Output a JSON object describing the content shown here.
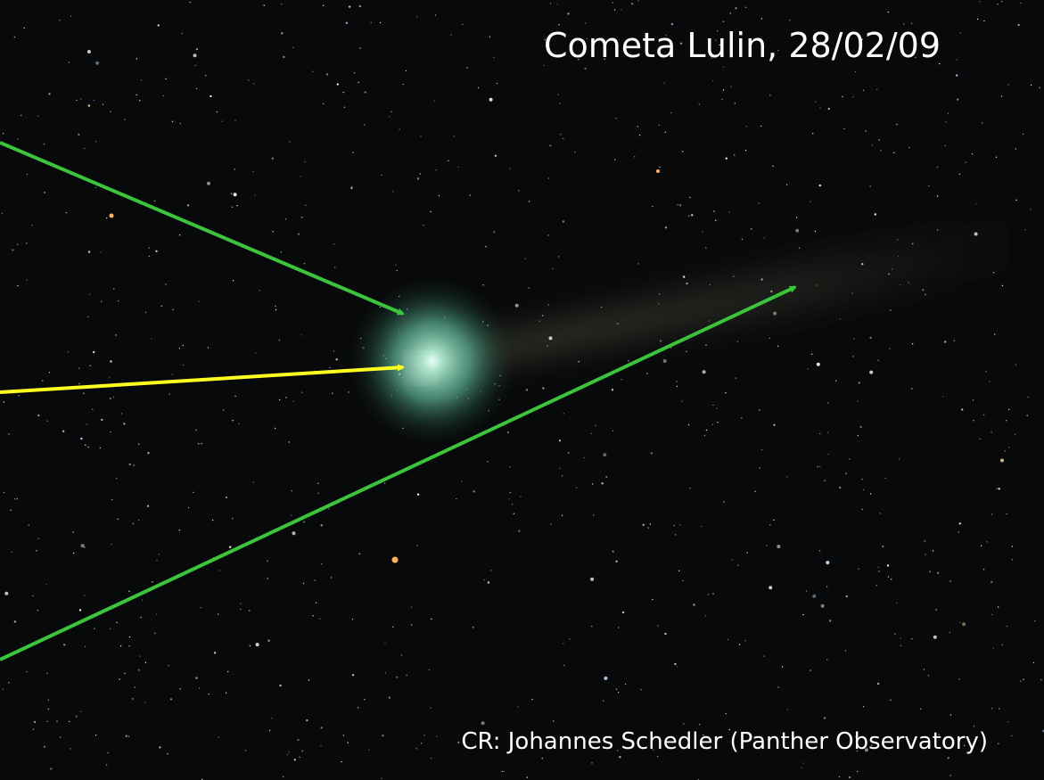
{
  "title": "Cometa Lulin, 28/02/09",
  "credit": "CR: Johannes Schedler (Panther Observatory)"
}
